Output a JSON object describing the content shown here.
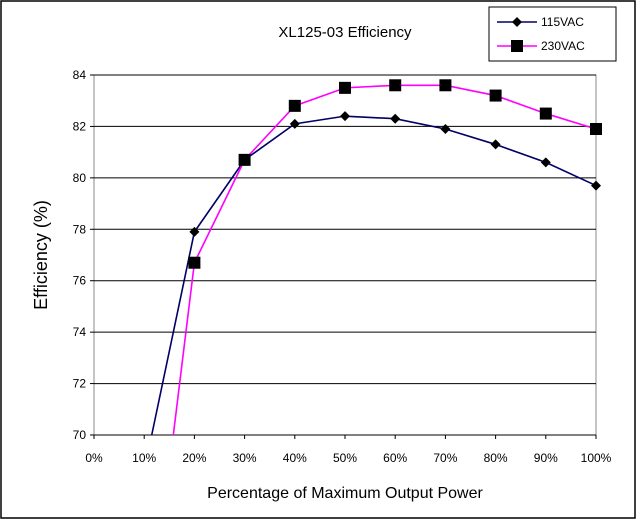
{
  "chart_data": {
    "type": "line",
    "title": "XL125-03  Efficiency",
    "xlabel": "Percentage of Maximum Output Power",
    "ylabel": "Efficiency  (%)",
    "x_tick_labels": [
      "0%",
      "10%",
      "20%",
      "30%",
      "40%",
      "50%",
      "60%",
      "70%",
      "80%",
      "90%",
      "100%"
    ],
    "xlim": [
      0,
      100
    ],
    "ylim": [
      70,
      84
    ],
    "y_ticks": [
      70,
      72,
      74,
      76,
      78,
      80,
      82,
      84
    ],
    "grid": "horizontal",
    "legend_position": "top-right",
    "series": [
      {
        "name": "115VAC",
        "color": "#000066",
        "marker": "diamond",
        "x": [
          11.5,
          20,
          30,
          40,
          50,
          60,
          70,
          80,
          90,
          100
        ],
        "y": [
          70,
          77.9,
          80.7,
          82.1,
          82.4,
          82.3,
          81.9,
          81.3,
          80.6,
          79.7
        ],
        "marker_from_index": 1
      },
      {
        "name": "230VAC",
        "color": "#ff00ff",
        "marker": "square",
        "x": [
          15.8,
          20,
          30,
          40,
          50,
          60,
          70,
          80,
          90,
          100
        ],
        "y": [
          70,
          76.7,
          80.7,
          82.8,
          83.5,
          83.6,
          83.6,
          83.2,
          82.5,
          81.9
        ],
        "marker_from_index": 1
      }
    ]
  }
}
